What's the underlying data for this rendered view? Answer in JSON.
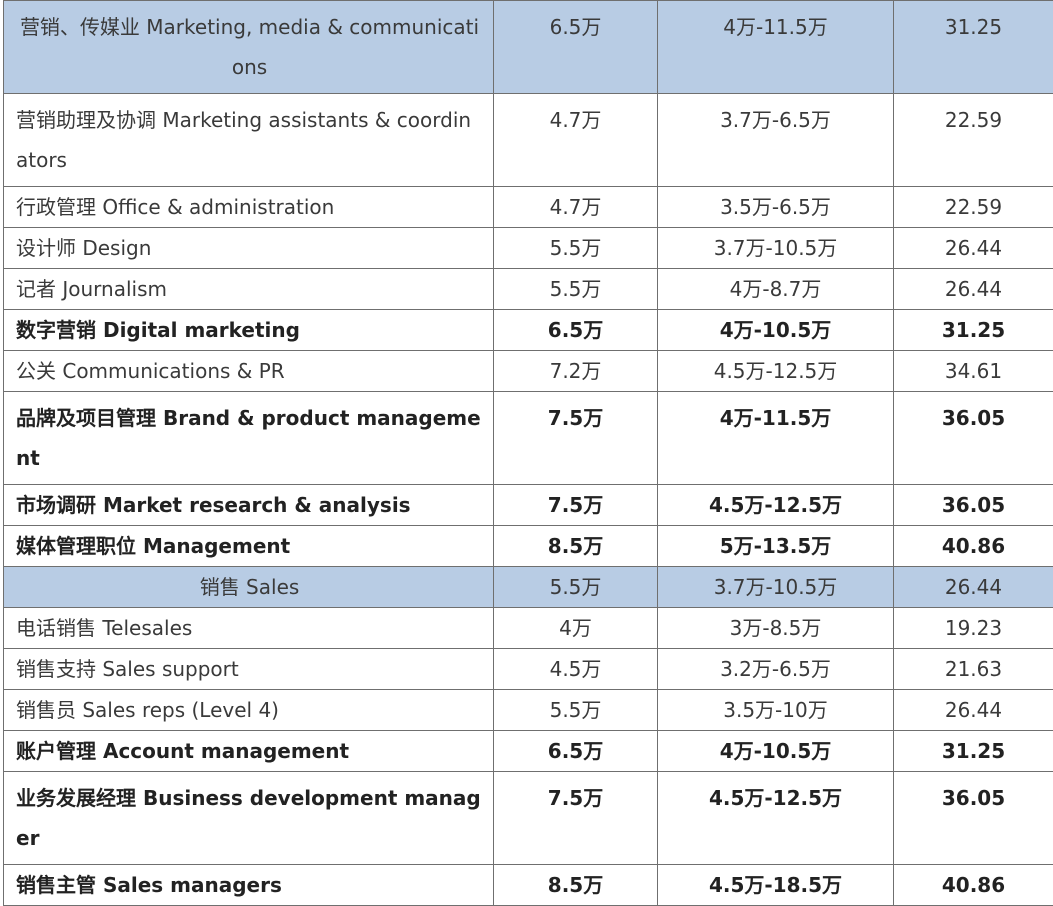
{
  "rows": [
    {
      "name": "营销、传媒业 Marketing, media & communications",
      "median": "6.5万",
      "range": "4万-11.5万",
      "hourly": "31.25",
      "header": true,
      "bold": false,
      "wrap": true
    },
    {
      "name": "营销助理及协调 Marketing  assistants & coordinators",
      "median": "4.7万",
      "range": "3.7万-6.5万",
      "hourly": "22.59",
      "header": false,
      "bold": false,
      "wrap": true
    },
    {
      "name": "行政管理 Office  & administration",
      "median": "4.7万",
      "range": "3.5万-6.5万",
      "hourly": "22.59",
      "header": false,
      "bold": false,
      "wrap": false
    },
    {
      "name": "设计师 Design",
      "median": "5.5万",
      "range": "3.7万-10.5万",
      "hourly": "26.44",
      "header": false,
      "bold": false,
      "wrap": false
    },
    {
      "name": "记者 Journalism",
      "median": "5.5万",
      "range": "4万-8.7万",
      "hourly": "26.44",
      "header": false,
      "bold": false,
      "wrap": false
    },
    {
      "name": "数字营销  Digital marketing",
      "median": "6.5万",
      "range": "4万-10.5万",
      "hourly": "31.25",
      "header": false,
      "bold": true,
      "wrap": false
    },
    {
      "name": "公关 Communications  & PR",
      "median": "7.2万",
      "range": "4.5万-12.5万",
      "hourly": "34.61",
      "header": false,
      "bold": false,
      "wrap": false
    },
    {
      "name": "品牌及项目管理  Brand & product management",
      "median": "7.5万",
      "range": "4万-11.5万",
      "hourly": "36.05",
      "header": false,
      "bold": true,
      "wrap": true
    },
    {
      "name": "市场调研  Market research & analysis",
      "median": "7.5万",
      "range": "4.5万-12.5万",
      "hourly": "36.05",
      "header": false,
      "bold": true,
      "wrap": false
    },
    {
      "name": "媒体管理职位  Management",
      "median": "8.5万",
      "range": "5万-13.5万",
      "hourly": "40.86",
      "header": false,
      "bold": true,
      "wrap": false
    },
    {
      "name": "销售 Sales",
      "median": "5.5万",
      "range": "3.7万-10.5万",
      "hourly": "26.44",
      "header": true,
      "bold": false,
      "wrap": false
    },
    {
      "name": "电话销售 Telesales",
      "median": "4万",
      "range": "3万-8.5万",
      "hourly": "19.23",
      "header": false,
      "bold": false,
      "wrap": false
    },
    {
      "name": "销售支持 Sales  support",
      "median": "4.5万",
      "range": "3.2万-6.5万",
      "hourly": "21.63",
      "header": false,
      "bold": false,
      "wrap": false
    },
    {
      "name": "销售员 Sales  reps (Level 4)",
      "median": "5.5万",
      "range": "3.5万-10万",
      "hourly": "26.44",
      "header": false,
      "bold": false,
      "wrap": false
    },
    {
      "name": "账户管理  Account management",
      "median": "6.5万",
      "range": "4万-10.5万",
      "hourly": "31.25",
      "header": false,
      "bold": true,
      "wrap": false
    },
    {
      "name": "业务发展经理  Business development manager",
      "median": "7.5万",
      "range": "4.5万-12.5万",
      "hourly": "36.05",
      "header": false,
      "bold": true,
      "wrap": true
    },
    {
      "name": "销售主管  Sales managers",
      "median": "8.5万",
      "range": "4.5万-18.5万",
      "hourly": "40.86",
      "header": false,
      "bold": true,
      "wrap": false
    }
  ]
}
